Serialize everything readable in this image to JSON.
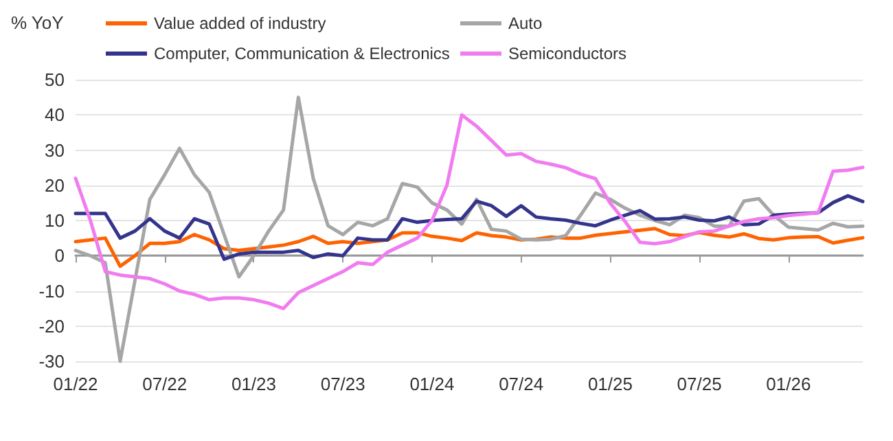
{
  "chart_data": {
    "type": "line",
    "ylabel": "% YoY",
    "categories": [
      "01/22",
      null,
      null,
      null,
      null,
      null,
      "07/22",
      null,
      null,
      null,
      null,
      null,
      "01/23",
      null,
      null,
      null,
      null,
      null,
      "07/23",
      null,
      null,
      null,
      null,
      null,
      "01/24",
      null,
      null,
      null,
      null,
      null,
      "07/24",
      null,
      null,
      null,
      null,
      null,
      "01/25",
      null,
      null,
      null,
      null,
      null,
      "07/25",
      null,
      null,
      null,
      null,
      null,
      "01/26",
      null,
      null,
      null,
      null,
      null
    ],
    "series": [
      {
        "name": "Value added of industry",
        "color": "#ff6200",
        "values": [
          4,
          4.5,
          5,
          -3,
          0,
          3.5,
          3.5,
          4,
          6,
          4.5,
          2,
          1.5,
          2,
          2.5,
          3,
          4,
          5.5,
          3.5,
          4,
          3.5,
          4,
          4.5,
          6.5,
          6.5,
          5.5,
          5,
          4.3,
          6.5,
          5.7,
          5.3,
          4.5,
          4.7,
          5.3,
          5,
          5,
          5.8,
          6.3,
          6.8,
          7.2,
          7.7,
          6,
          5.7,
          6.6,
          5.8,
          5.3,
          6.2,
          4.9,
          4.5,
          5.1,
          5.3,
          5.4,
          3.6,
          4.4,
          5.1
        ]
      },
      {
        "name": "Auto",
        "color": "#a6a6a6",
        "values": [
          1.5,
          0,
          -2,
          -30,
          -7,
          16,
          23,
          30.5,
          23,
          18,
          6,
          -6,
          0,
          7,
          13,
          45,
          22,
          8.5,
          6,
          9.5,
          8.5,
          10.5,
          20.5,
          19.5,
          15,
          13,
          9,
          16,
          7.5,
          7,
          4.7,
          4.5,
          4.7,
          5.7,
          11.5,
          17.8,
          16,
          13.5,
          11.5,
          10,
          8.8,
          11.5,
          10.8,
          8.4,
          8.4,
          15.5,
          16.2,
          11.5,
          8.1,
          7.7,
          7.3,
          9.2,
          8.2,
          8.4
        ]
      },
      {
        "name": "Computer, Communication & Electronics",
        "color": "#34348c",
        "values": [
          12,
          12,
          12,
          5,
          7,
          10.5,
          7,
          5,
          10.5,
          9,
          -1,
          0.5,
          1,
          1,
          1,
          1.5,
          -0.5,
          0.5,
          0,
          5,
          4.5,
          4.5,
          10.5,
          9.5,
          10,
          10.3,
          10.5,
          15.5,
          14.2,
          11.2,
          14.2,
          11,
          10.5,
          10.1,
          9.2,
          8.5,
          10.1,
          11.5,
          12.8,
          10.4,
          10.5,
          11,
          10.1,
          9.9,
          11,
          8.8,
          9,
          11.5,
          11.8,
          12,
          12.2,
          15.1,
          17,
          15.4
        ]
      },
      {
        "name": "Semiconductors",
        "color": "#f07cf0",
        "values": [
          22,
          10,
          -4.5,
          -5.5,
          -6,
          -6.5,
          -8,
          -10,
          -11,
          -12.5,
          -12,
          -12,
          -12.5,
          -13.5,
          -15,
          -10.5,
          -8.5,
          -6.5,
          -4.5,
          -2,
          -2.5,
          1,
          3,
          5,
          10,
          20,
          40,
          36.8,
          32.7,
          28.6,
          29,
          26.8,
          26,
          25,
          23.2,
          21.9,
          14.9,
          9.7,
          3.8,
          3.4,
          4,
          5.4,
          6.8,
          7,
          8.4,
          9.7,
          10.5,
          10.8,
          11.4,
          11.8,
          12.2,
          24,
          24.3,
          25.1
        ]
      }
    ],
    "ylim": [
      -30,
      50
    ],
    "yticks": [
      -30,
      -20,
      -10,
      0,
      10,
      20,
      30,
      40,
      50
    ],
    "grid": "y",
    "legend": "top",
    "marker": "none",
    "line_style": "solid"
  }
}
